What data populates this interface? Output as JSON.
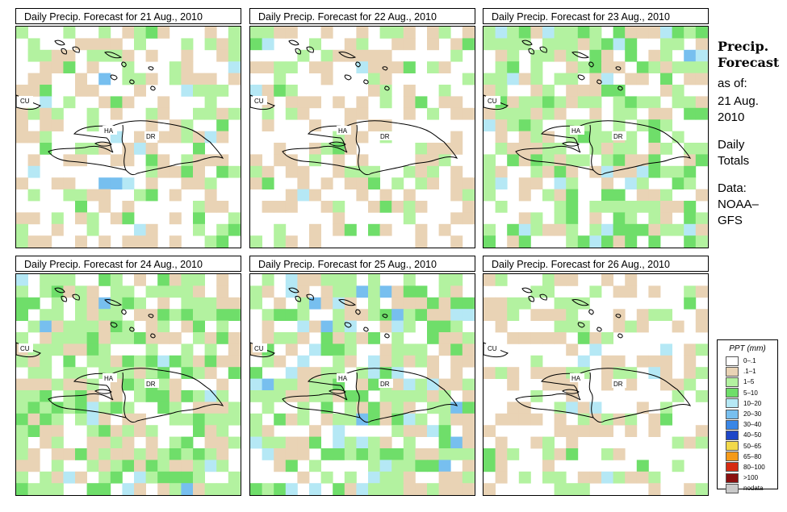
{
  "panels": [
    {
      "title": "Daily Precip. Forecast for  21 Aug., 2010",
      "seed": 11,
      "profile": "a"
    },
    {
      "title": "Daily Precip. Forecast for  22 Aug., 2010",
      "seed": 23,
      "profile": "b"
    },
    {
      "title": "Daily Precip. Forecast for  23 Aug., 2010",
      "seed": 37,
      "profile": "c"
    },
    {
      "title": "Daily Precip. Forecast for  24 Aug., 2010",
      "seed": 41,
      "profile": "c"
    },
    {
      "title": "Daily Precip. Forecast for  25 Aug., 2010",
      "seed": 53,
      "profile": "d"
    },
    {
      "title": "Daily Precip. Forecast for  26 Aug., 2010",
      "seed": 67,
      "profile": "b"
    }
  ],
  "map_labels": {
    "cuba": "CU",
    "haiti": "HA",
    "dominican_republic": "DR"
  },
  "side": {
    "heading_line1": "Precip.",
    "heading_line2": "Forecast",
    "asof_line1": "as of:",
    "asof_line2": "21 Aug.",
    "asof_line3": "2010",
    "type_line1": "Daily",
    "type_line2": "Totals",
    "data_line1": "Data:",
    "data_line2": "NOAA–",
    "data_line3": "GFS"
  },
  "legend": {
    "title": "PPT (mm)",
    "items": [
      {
        "label": "0–.1",
        "color": "#ffffff"
      },
      {
        "label": ".1–1",
        "color": "#e9d3b5"
      },
      {
        "label": "1–5",
        "color": "#b3f2a0"
      },
      {
        "label": "5–10",
        "color": "#6fde6a"
      },
      {
        "label": "10–20",
        "color": "#b5e8f5"
      },
      {
        "label": "20–30",
        "color": "#77bfef"
      },
      {
        "label": "30–40",
        "color": "#3a86e6"
      },
      {
        "label": "40–50",
        "color": "#1e46c8"
      },
      {
        "label": "50–65",
        "color": "#f2d94a"
      },
      {
        "label": "65–80",
        "color": "#f59a1a"
      },
      {
        "label": "80–100",
        "color": "#d62a12"
      },
      {
        "label": ">100",
        "color": "#8a1010"
      },
      {
        "label": "nodata",
        "color": "#c9c9c9"
      }
    ]
  }
}
